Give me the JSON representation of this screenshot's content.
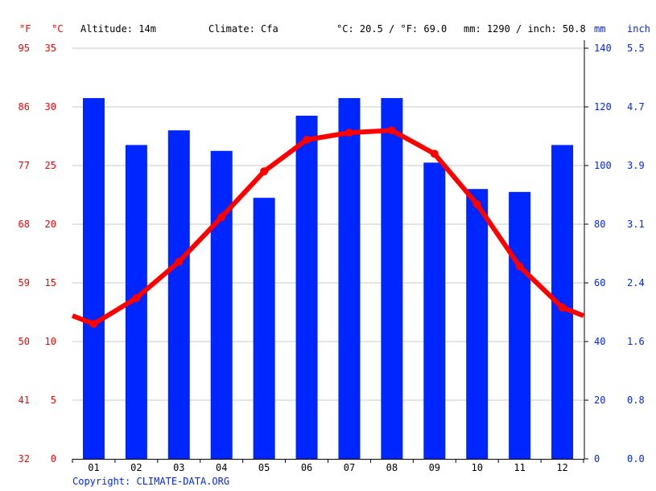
{
  "header": {
    "unit_f": "°F",
    "unit_c": "°C",
    "altitude": "Altitude: 14m",
    "climate": "Climate: Cfa",
    "avg_temp": "°C: 20.5 / °F: 69.0",
    "precip_total": "mm: 1290 / inch: 50.8",
    "unit_mm": "mm",
    "unit_inch": "inch"
  },
  "copyright": "Copyright: CLIMATE-DATA.ORG",
  "colors": {
    "temp": "#ff0000",
    "precip": "#0026ff",
    "grid": "#c8c8c8",
    "left_labels": "#ff0000",
    "right_labels": "#0026ff"
  },
  "chart_data": {
    "type": "bar+line",
    "categories": [
      "01",
      "02",
      "03",
      "04",
      "05",
      "06",
      "07",
      "08",
      "09",
      "10",
      "11",
      "12"
    ],
    "series": [
      {
        "type": "bar",
        "unit": "mm",
        "axis": "right",
        "values": [
          123,
          107,
          112,
          105,
          89,
          117,
          123,
          123,
          101,
          92,
          91,
          107
        ]
      },
      {
        "type": "line",
        "unit": "°C",
        "axis": "left",
        "values": [
          11.5,
          13.7,
          16.8,
          20.6,
          24.5,
          27.2,
          27.8,
          28.0,
          26.0,
          21.7,
          16.4,
          12.9
        ]
      }
    ],
    "left_axis_c": {
      "ylim": [
        0,
        35
      ],
      "ticks": [
        "0",
        "5",
        "10",
        "15",
        "20",
        "25",
        "30",
        "35"
      ]
    },
    "left_axis_f": {
      "ticks": [
        "32",
        "41",
        "50",
        "59",
        "68",
        "77",
        "86",
        "95"
      ]
    },
    "right_axis_mm": {
      "ylim": [
        0,
        140
      ],
      "ticks": [
        "0",
        "20",
        "40",
        "60",
        "80",
        "100",
        "120",
        "140"
      ]
    },
    "right_axis_inch": {
      "ticks": [
        "0.0",
        "0.8",
        "1.6",
        "2.4",
        "3.1",
        "3.9",
        "4.7",
        "5.5"
      ]
    },
    "grid": true
  }
}
